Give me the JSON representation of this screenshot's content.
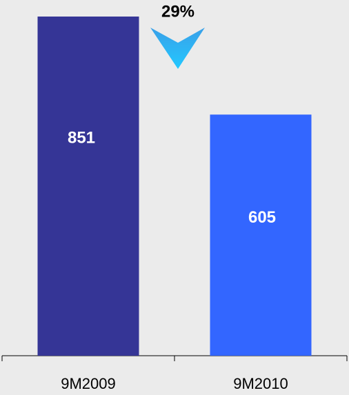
{
  "chart_data": {
    "type": "bar",
    "categories": [
      "9M2009",
      "9M2010"
    ],
    "values": [
      851,
      605
    ],
    "colors": [
      "#353596",
      "#3366ff"
    ],
    "annotation": "29%"
  }
}
